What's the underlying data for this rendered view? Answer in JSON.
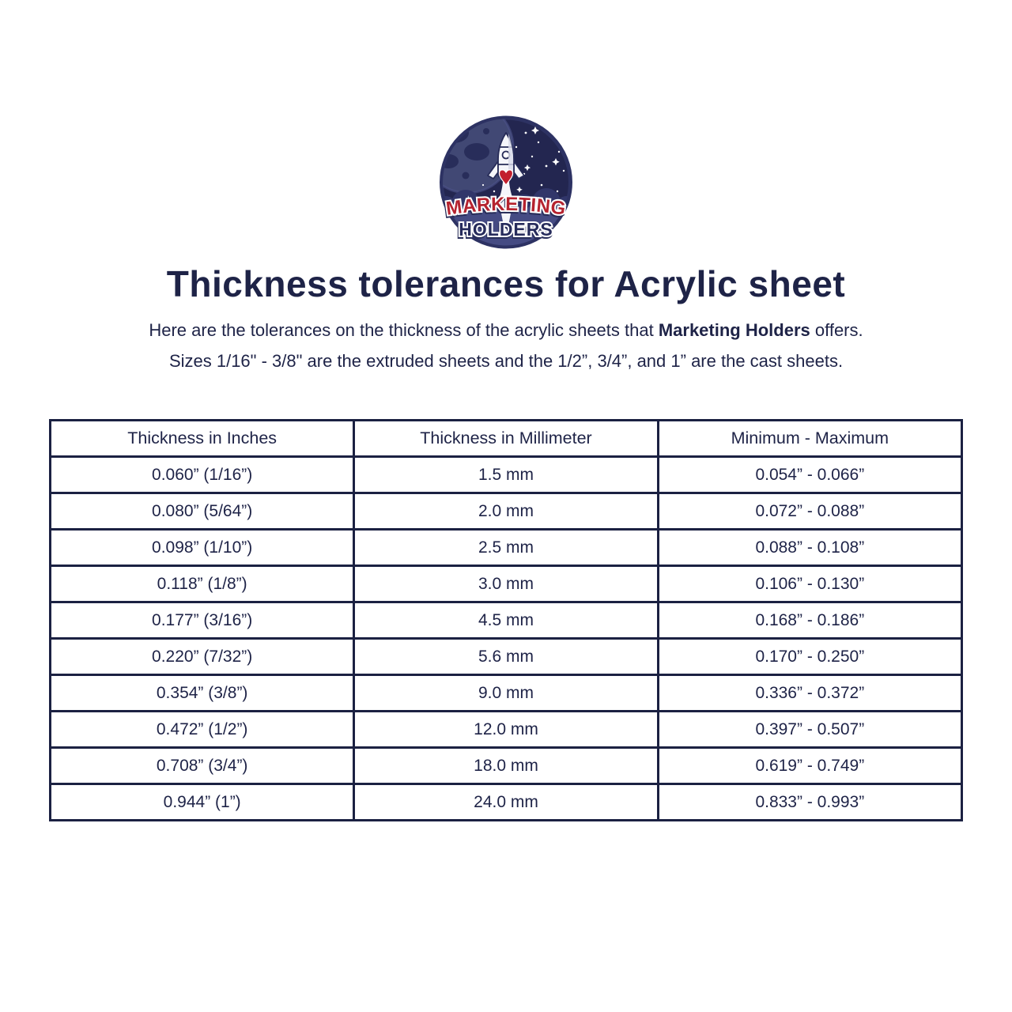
{
  "logo": {
    "icon_name": "rocket-launch-space-badge",
    "brand_line1": "MARKETING",
    "brand_line2": "HOLDERS",
    "colors": {
      "badge_space": "#232650",
      "badge_rim": "#2d3263",
      "planet": "#414874",
      "planet_land": "#282d5a",
      "cloud_back": "#31366a",
      "cloud_front": "#454b83",
      "rocket_outline": "#272c58",
      "brand_red": "#b5232f",
      "brand_navy": "#272c5c"
    }
  },
  "title": "Thickness tolerances for Acrylic sheet",
  "intro": {
    "line1_prefix": "Here are the tolerances on the thickness of the acrylic sheets that ",
    "line1_bold": "Marketing Holders",
    "line1_suffix": " offers.",
    "line2": "Sizes 1/16\" - 3/8\" are the extruded sheets and the 1/2”, 3/4”, and 1” are the cast sheets."
  },
  "table": {
    "headers": [
      "Thickness in Inches",
      "Thickness in Millimeter",
      "Minimum - Maximum"
    ],
    "rows": [
      [
        "0.060” (1/16”)",
        "1.5 mm",
        "0.054” - 0.066”"
      ],
      [
        "0.080” (5/64”)",
        "2.0 mm",
        "0.072” - 0.088”"
      ],
      [
        "0.098” (1/10”)",
        "2.5 mm",
        "0.088” - 0.108”"
      ],
      [
        "0.118” (1/8”)",
        "3.0 mm",
        "0.106” - 0.130”"
      ],
      [
        "0.177” (3/16”)",
        "4.5 mm",
        "0.168” - 0.186”"
      ],
      [
        "0.220” (7/32”)",
        "5.6 mm",
        "0.170” - 0.250”"
      ],
      [
        "0.354” (3/8”)",
        "9.0 mm",
        "0.336” - 0.372”"
      ],
      [
        "0.472” (1/2”)",
        "12.0 mm",
        "0.397” - 0.507”"
      ],
      [
        "0.708” (3/4”)",
        "18.0 mm",
        "0.619” - 0.749”"
      ],
      [
        "0.944” (1”)",
        "24.0 mm",
        "0.833” - 0.993”"
      ]
    ]
  },
  "colors": {
    "text_navy": "#1e2347",
    "table_border": "#1b2142",
    "accent_red": "#b5232f",
    "background": "#ffffff"
  }
}
